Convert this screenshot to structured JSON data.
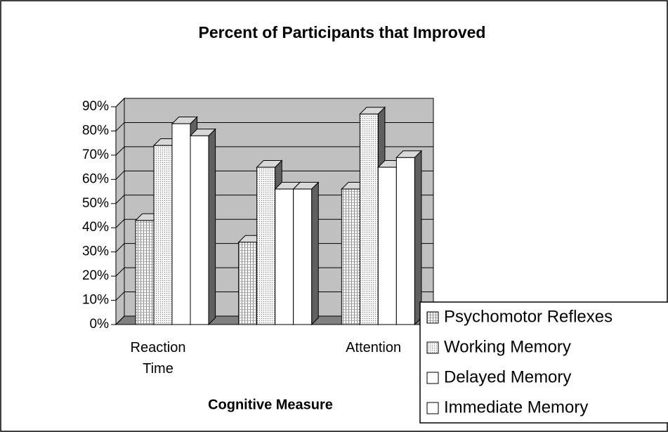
{
  "chart_data": {
    "type": "bar3d",
    "title": "Percent of Participants that Improved",
    "x_label": "Cognitive Measure",
    "categories": [
      "Reaction Time",
      null,
      "Attention"
    ],
    "series": [
      {
        "name": "Psychomotor Reflexes",
        "color": "#e6e6e6",
        "values": [
          43,
          34,
          56
        ]
      },
      {
        "name": "Working Memory",
        "color": "#d0d0d0",
        "values": [
          74,
          65,
          87
        ]
      },
      {
        "name": "Delayed Memory",
        "color": "#ffffff",
        "values": [
          83,
          56,
          65
        ]
      },
      {
        "name": "Immediate Memory",
        "color": "#ffffff",
        "values": [
          78,
          56,
          69
        ]
      }
    ],
    "ylim": [
      0,
      90
    ],
    "yticks": [
      {
        "value": 0,
        "label": "0%"
      },
      {
        "value": 10,
        "label": "10%"
      },
      {
        "value": 20,
        "label": "20%"
      },
      {
        "value": 30,
        "label": "30%"
      },
      {
        "value": 40,
        "label": "40%"
      },
      {
        "value": 50,
        "label": "50%"
      },
      {
        "value": 60,
        "label": "60%"
      },
      {
        "value": 70,
        "label": "70%"
      },
      {
        "value": 80,
        "label": "80%"
      },
      {
        "value": 90,
        "label": "90%"
      }
    ],
    "grid": true,
    "legend": "bottom-right"
  }
}
